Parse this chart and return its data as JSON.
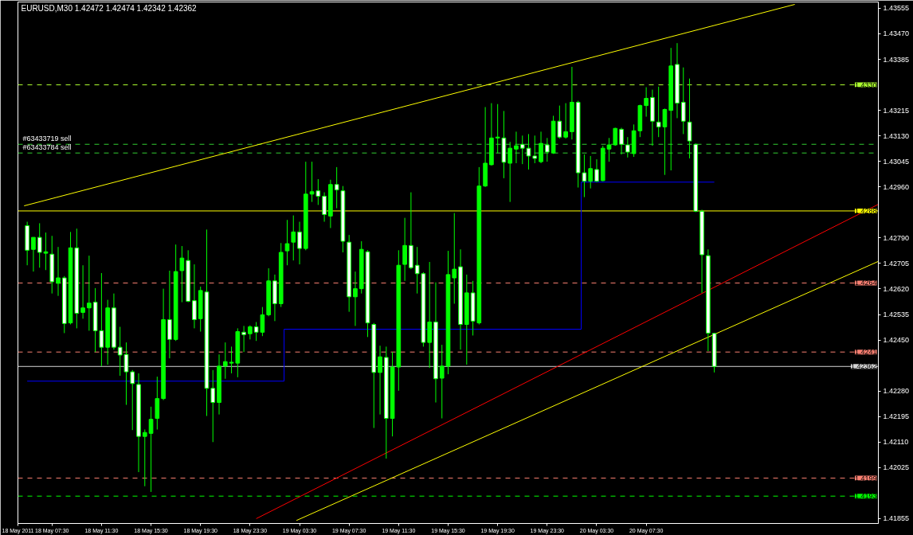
{
  "chart_data": {
    "type": "candlestick",
    "title": "EURUSD,M30  1.42472 1.42474 1.42342 1.42362",
    "xlim": [
      "2011-05-18T04:45",
      "2011-05-21T02:15"
    ],
    "xticks": [
      {
        "value": "2011-05-18T04:45",
        "label": "18 May 2011"
      },
      {
        "value": "2011-05-18T07:30",
        "label": "18 May 07:30"
      },
      {
        "value": "2011-05-18T11:30",
        "label": "18 May 11:30"
      },
      {
        "value": "2011-05-18T15:30",
        "label": "18 May 15:30"
      },
      {
        "value": "2011-05-18T19:30",
        "label": "18 May 19:30"
      },
      {
        "value": "2011-05-18T23:30",
        "label": "18 May 23:30"
      },
      {
        "value": "2011-05-19T03:30",
        "label": "19 May 03:30"
      },
      {
        "value": "2011-05-19T07:30",
        "label": "19 May 07:30"
      },
      {
        "value": "2011-05-19T11:30",
        "label": "19 May 11:30"
      },
      {
        "value": "2011-05-19T15:30",
        "label": "19 May 15:30"
      },
      {
        "value": "2011-05-19T19:30",
        "label": "19 May 19:30"
      },
      {
        "value": "2011-05-19T23:30",
        "label": "19 May 23:30"
      },
      {
        "value": "2011-05-20T03:30",
        "label": "20 May 03:30"
      },
      {
        "value": "2011-05-20T07:30",
        "label": "20 May 07:30"
      }
    ],
    "ylim": [
      1.41839,
      1.43576
    ],
    "yticks": [
      1.41855,
      1.42025,
      {
        "value": 1.4211,
        "label": "1.42110"
      },
      1.42195,
      {
        "value": 1.4228,
        "label": "1.42280"
      },
      {
        "value": 1.4245,
        "label": "1.42450"
      },
      1.42535,
      {
        "value": 1.4262,
        "label": "1.42620"
      },
      1.42705,
      {
        "value": 1.4279,
        "label": "1.42790"
      },
      {
        "value": 1.4296,
        "label": "1.42960"
      },
      1.43045,
      {
        "value": 1.4313,
        "label": "1.43130"
      },
      1.43215,
      1.43385,
      {
        "value": 1.4347,
        "label": "1.43470"
      },
      1.43555
    ],
    "grid": false,
    "ref_lines": [
      {
        "axis": "y",
        "value": 1.433,
        "label": "1.4330",
        "color": "#adff2f",
        "line_style": "dashed"
      },
      {
        "axis": "y",
        "value": 1.43102,
        "label": "#63433719 sell",
        "color": "#32cd32",
        "line_style": "dashed"
      },
      {
        "axis": "y",
        "value": 1.43073,
        "label": "#63433784 sell",
        "color": "#32cd32",
        "line_style": "dashed"
      },
      {
        "axis": "y",
        "value": 1.4288,
        "label": "1.4288",
        "color": "#ffff00",
        "line_style": "solid"
      },
      {
        "axis": "y",
        "value": 1.4264,
        "label": "1.4264",
        "color": "#fa8072",
        "line_style": "dashed"
      },
      {
        "axis": "y",
        "value": 1.4241,
        "label": "1.4241",
        "color": "#fa8072",
        "line_style": "dashed"
      },
      {
        "axis": "y",
        "value": 1.42362,
        "label": "1.42362",
        "color": "#d3d3d3",
        "line_style": "solid"
      },
      {
        "axis": "y",
        "value": 1.4199,
        "label": "1.4199",
        "color": "#fa8072",
        "line_style": "dashed"
      },
      {
        "axis": "y",
        "value": 1.4193,
        "label": "1.4193",
        "color": "#00ff00",
        "line_style": "dashed"
      }
    ],
    "series": [
      {
        "type": "line",
        "color": "#ffff00",
        "x": [
          "2011-05-18T05:15",
          "2011-05-20T19:30"
        ],
        "values": [
          1.42897,
          1.43568
        ]
      },
      {
        "type": "line",
        "color": "#ffff00",
        "x": [
          "2011-05-19T03:15",
          "2011-05-21T02:15"
        ],
        "values": [
          1.41849,
          1.42712
        ]
      },
      {
        "type": "line",
        "color": "#ff0000",
        "x": [
          "2011-05-19T00:00",
          "2011-05-21T02:15"
        ],
        "values": [
          1.41855,
          1.42902
        ]
      },
      {
        "type": "line",
        "color": "#0000ff",
        "x": [
          "2011-05-18T05:30",
          "2011-05-19T02:15",
          "2011-05-19T02:15",
          "2011-05-20T02:15",
          "2011-05-20T02:15",
          "2011-05-20T13:00"
        ],
        "values": [
          1.42313,
          1.42313,
          1.42486,
          1.42486,
          1.42976,
          1.42976
        ]
      },
      {
        "type": "candlestick",
        "color": "#00ff00",
        "x": [
          "2011-05-18T06:00",
          "2011-05-18T07:00",
          "2011-05-18T08:00",
          "2011-05-18T09:00",
          "2011-05-18T10:00",
          "2011-05-18T10:30",
          "2011-05-18T12:00",
          "2011-05-18T15:00",
          "2011-05-18T15:30",
          "2011-05-18T16:00",
          "2011-05-18T16:30",
          "2011-05-18T17:30",
          "2011-05-18T18:00",
          "2011-05-18T19:30",
          "2011-05-18T21:00",
          "2011-05-18T21:30",
          "2011-05-18T22:00",
          "2011-05-18T22:30",
          "2011-05-18T23:30",
          "2011-05-19T00:30",
          "2011-05-19T01:00",
          "2011-05-19T02:00",
          "2011-05-19T02:30",
          "2011-05-19T03:00",
          "2011-05-19T04:00",
          "2011-05-19T04:30",
          "2011-05-19T06:00",
          "2011-05-19T08:00",
          "2011-05-19T08:30",
          "2011-05-19T10:00",
          "2011-05-19T11:00",
          "2011-05-19T11:30",
          "2011-05-19T12:00",
          "2011-05-19T14:00",
          "2011-05-19T15:00",
          "2011-05-19T15:30",
          "2011-05-19T16:00",
          "2011-05-19T17:00",
          "2011-05-19T18:00",
          "2011-05-19T18:30",
          "2011-05-19T19:00",
          "2011-05-19T19:30",
          "2011-05-19T20:30",
          "2011-05-19T21:00",
          "2011-05-19T23:00",
          "2011-05-20T00:00",
          "2011-05-20T01:00",
          "2011-05-20T01:30",
          "2011-05-20T03:00",
          "2011-05-20T04:00",
          "2011-05-20T04:30",
          "2011-05-20T05:00",
          "2011-05-20T06:30",
          "2011-05-20T07:00",
          "2011-05-20T07:30",
          "2011-05-20T09:00",
          "2011-05-20T09:30"
        ],
        "ohlc": [
          [
            1.42752,
            1.42792,
            1.42678,
            1.42792
          ],
          [
            1.42739,
            1.42808,
            1.42683,
            1.42744
          ],
          [
            1.42639,
            1.4276,
            1.42597,
            1.42657
          ],
          [
            1.42507,
            1.4281,
            1.42502,
            1.42757
          ],
          [
            1.42542,
            1.42699,
            1.42521,
            1.42557
          ],
          [
            1.42557,
            1.42731,
            1.42481,
            1.42573
          ],
          [
            1.42426,
            1.42584,
            1.42368,
            1.42557
          ],
          [
            1.42129,
            1.42152,
            1.41963,
            1.42142
          ],
          [
            1.42139,
            1.42228,
            1.41944,
            1.42186
          ],
          [
            1.42189,
            1.42328,
            1.42152,
            1.42255
          ],
          [
            1.42255,
            1.42621,
            1.4225,
            1.42518
          ],
          [
            1.42452,
            1.42768,
            1.42447,
            1.42678
          ],
          [
            1.42681,
            1.42763,
            1.42576,
            1.42723
          ],
          [
            1.42521,
            1.42628,
            1.42478,
            1.42615
          ],
          [
            1.42242,
            1.42402,
            1.42202,
            1.42363
          ],
          [
            1.42363,
            1.42442,
            1.42321,
            1.42378
          ],
          [
            1.42373,
            1.42428,
            1.42339,
            1.42376
          ],
          [
            1.42373,
            1.42489,
            1.42326,
            1.42478
          ],
          [
            1.42471,
            1.42499,
            1.42452,
            1.42494
          ],
          [
            1.42476,
            1.4256,
            1.42463,
            1.42534
          ],
          [
            1.42534,
            1.42689,
            1.42529,
            1.42647
          ],
          [
            1.42571,
            1.42773,
            1.4256,
            1.42742
          ],
          [
            1.42747,
            1.4285,
            1.42699,
            1.42771
          ],
          [
            1.42776,
            1.42865,
            1.42715,
            1.4281
          ],
          [
            1.42755,
            1.43044,
            1.42749,
            1.42936
          ],
          [
            1.42936,
            1.43044,
            1.4291,
            1.42944
          ],
          [
            1.42863,
            1.42984,
            1.42823,
            1.42968
          ],
          [
            1.42594,
            1.42678,
            1.42497,
            1.42621
          ],
          [
            1.42621,
            1.42779,
            1.42605,
            1.42752
          ],
          [
            1.42342,
            1.42431,
            1.42202,
            1.42394
          ],
          [
            1.42189,
            1.4241,
            1.42129,
            1.4236
          ],
          [
            1.4236,
            1.42749,
            1.42281,
            1.42699
          ],
          [
            1.42702,
            1.42857,
            1.42647,
            1.42765
          ],
          [
            1.42442,
            1.4271,
            1.42357,
            1.4251
          ],
          [
            1.42323,
            1.42434,
            1.42189,
            1.42363
          ],
          [
            1.42363,
            1.42747,
            1.42336,
            1.42668
          ],
          [
            1.42657,
            1.42873,
            1.42571,
            1.42686
          ],
          [
            1.42502,
            1.42668,
            1.42368,
            1.42607
          ],
          [
            1.42507,
            1.43026,
            1.42502,
            1.42963
          ],
          [
            1.42963,
            1.43226,
            1.4296,
            1.43039
          ],
          [
            1.43034,
            1.43239,
            1.43031,
            1.43123
          ],
          [
            1.43123,
            1.43236,
            1.43073,
            1.43126
          ],
          [
            1.43039,
            1.4311,
            1.4291,
            1.43089
          ],
          [
            1.43086,
            1.43144,
            1.43039,
            1.43097
          ],
          [
            1.43044,
            1.43144,
            1.43039,
            1.43105
          ],
          [
            1.43073,
            1.43197,
            1.4307,
            1.43179
          ],
          [
            1.43126,
            1.43239,
            1.43121,
            1.43144
          ],
          [
            1.43144,
            1.4336,
            1.43118,
            1.43242
          ],
          [
            1.42979,
            1.43063,
            1.42955,
            1.43021
          ],
          [
            1.42981,
            1.43097,
            1.42979,
            1.43089
          ],
          [
            1.43086,
            1.43123,
            1.43044,
            1.431
          ],
          [
            1.431,
            1.43157,
            1.43097,
            1.43155
          ],
          [
            1.43071,
            1.43168,
            1.4306,
            1.43147
          ],
          [
            1.43147,
            1.43234,
            1.43126,
            1.43231
          ],
          [
            1.43231,
            1.43292,
            1.43194,
            1.43255
          ],
          [
            1.4316,
            1.43221,
            1.43,
            1.43218
          ],
          [
            1.43215,
            1.43423,
            1.43015,
            1.43363
          ]
        ]
      },
      {
        "type": "candlestick",
        "color": "#ffffff",
        "x": [
          "2011-05-18T05:30",
          "2011-05-18T06:30",
          "2011-05-18T07:30",
          "2011-05-18T08:30",
          "2011-05-18T09:30",
          "2011-05-18T11:00",
          "2011-05-18T11:30",
          "2011-05-18T12:30",
          "2011-05-18T13:00",
          "2011-05-18T13:30",
          "2011-05-18T14:00",
          "2011-05-18T14:30",
          "2011-05-18T17:00",
          "2011-05-18T18:30",
          "2011-05-18T19:00",
          "2011-05-18T20:00",
          "2011-05-18T20:30",
          "2011-05-18T23:00",
          "2011-05-19T00:00",
          "2011-05-19T01:30",
          "2011-05-19T03:30",
          "2011-05-19T05:00",
          "2011-05-19T05:30",
          "2011-05-19T06:30",
          "2011-05-19T07:00",
          "2011-05-19T07:30",
          "2011-05-19T09:00",
          "2011-05-19T09:30",
          "2011-05-19T10:30",
          "2011-05-19T12:30",
          "2011-05-19T13:00",
          "2011-05-19T13:30",
          "2011-05-19T14:30",
          "2011-05-19T16:30",
          "2011-05-19T17:30",
          "2011-05-19T20:00",
          "2011-05-19T21:30",
          "2011-05-19T22:00",
          "2011-05-19T22:30",
          "2011-05-19T23:30",
          "2011-05-20T00:30",
          "2011-05-20T02:00",
          "2011-05-20T02:30",
          "2011-05-20T03:30",
          "2011-05-20T05:30",
          "2011-05-20T06:00",
          "2011-05-20T08:00",
          "2011-05-20T08:30",
          "2011-05-20T10:00",
          "2011-05-20T10:30",
          "2011-05-20T11:00",
          "2011-05-20T11:30",
          "2011-05-20T12:00",
          "2011-05-20T12:30",
          "2011-05-20T13:00"
        ],
        "ohlc": [
          [
            1.42831,
            1.42844,
            1.42699,
            1.42749
          ],
          [
            1.42792,
            1.42839,
            1.42691,
            1.42742
          ],
          [
            1.42736,
            1.42797,
            1.42605,
            1.42644
          ],
          [
            1.42657,
            1.42663,
            1.42473,
            1.42505
          ],
          [
            1.42757,
            1.42821,
            1.42489,
            1.42539
          ],
          [
            1.42576,
            1.42623,
            1.4241,
            1.42481
          ],
          [
            1.42481,
            1.42673,
            1.42363,
            1.42426
          ],
          [
            1.42557,
            1.42605,
            1.42418,
            1.42426
          ],
          [
            1.42426,
            1.42494,
            1.42331,
            1.424
          ],
          [
            1.42402,
            1.42442,
            1.42234,
            1.42344
          ],
          [
            1.42344,
            1.4235,
            1.4215,
            1.42305
          ],
          [
            1.42302,
            1.42339,
            1.4201,
            1.42129
          ],
          [
            1.42518,
            1.42681,
            1.42389,
            1.42452
          ],
          [
            1.42715,
            1.42749,
            1.42576,
            1.42579
          ],
          [
            1.42581,
            1.42702,
            1.42489,
            1.42518
          ],
          [
            1.4261,
            1.42818,
            1.42197,
            1.42289
          ],
          [
            1.42289,
            1.4235,
            1.4211,
            1.42242
          ],
          [
            1.42476,
            1.42497,
            1.4241,
            1.42468
          ],
          [
            1.42494,
            1.4251,
            1.42447,
            1.42476
          ],
          [
            1.42647,
            1.42668,
            1.42513,
            1.42571
          ],
          [
            1.4281,
            1.42844,
            1.42702,
            1.42755
          ],
          [
            1.42947,
            1.42986,
            1.429,
            1.42929
          ],
          [
            1.42929,
            1.42942,
            1.42844,
            1.42868
          ],
          [
            1.42968,
            1.43026,
            1.42889,
            1.4295
          ],
          [
            1.42947,
            1.42963,
            1.42742,
            1.42779
          ],
          [
            1.42776,
            1.428,
            1.42544,
            1.42594
          ],
          [
            1.42744,
            1.42749,
            1.4246,
            1.42507
          ],
          [
            1.42502,
            1.42507,
            1.42157,
            1.42342
          ],
          [
            1.42392,
            1.42428,
            1.42055,
            1.42189
          ],
          [
            1.42765,
            1.42942,
            1.42686,
            1.42691
          ],
          [
            1.42699,
            1.4276,
            1.42605,
            1.42671
          ],
          [
            1.42671,
            1.42676,
            1.42428,
            1.42442
          ],
          [
            1.4251,
            1.42642,
            1.42242,
            1.42321
          ],
          [
            1.42694,
            1.42752,
            1.42418,
            1.42502
          ],
          [
            1.42607,
            1.42647,
            1.42465,
            1.42513
          ],
          [
            1.43123,
            1.43213,
            1.42989,
            1.43042
          ],
          [
            1.43102,
            1.43131,
            1.43036,
            1.43089
          ],
          [
            1.43089,
            1.43136,
            1.43018,
            1.43063
          ],
          [
            1.43063,
            1.43131,
            1.43039,
            1.43055
          ],
          [
            1.431,
            1.43123,
            1.43044,
            1.43076
          ],
          [
            1.43179,
            1.43231,
            1.43121,
            1.43126
          ],
          [
            1.43242,
            1.43247,
            1.42958,
            1.43007
          ],
          [
            1.43007,
            1.43068,
            1.42926,
            1.42979
          ],
          [
            1.43018,
            1.43052,
            1.42976,
            1.42979
          ],
          [
            1.43152,
            1.43157,
            1.43068,
            1.43102
          ],
          [
            1.431,
            1.43126,
            1.43058,
            1.43076
          ],
          [
            1.43258,
            1.43284,
            1.43097,
            1.43179
          ],
          [
            1.43176,
            1.43294,
            1.43126,
            1.4316
          ],
          [
            1.43368,
            1.43439,
            1.43189,
            1.43239
          ],
          [
            1.43242,
            1.43358,
            1.43136,
            1.43179
          ],
          [
            1.43176,
            1.43321,
            1.43055,
            1.43113
          ],
          [
            1.43102,
            1.43105,
            1.42876,
            1.42879
          ],
          [
            1.42879,
            1.42884,
            1.42607,
            1.42734
          ],
          [
            1.42731,
            1.42752,
            1.42413,
            1.42473
          ],
          [
            1.42472,
            1.42474,
            1.42342,
            1.42362
          ]
        ]
      }
    ]
  }
}
